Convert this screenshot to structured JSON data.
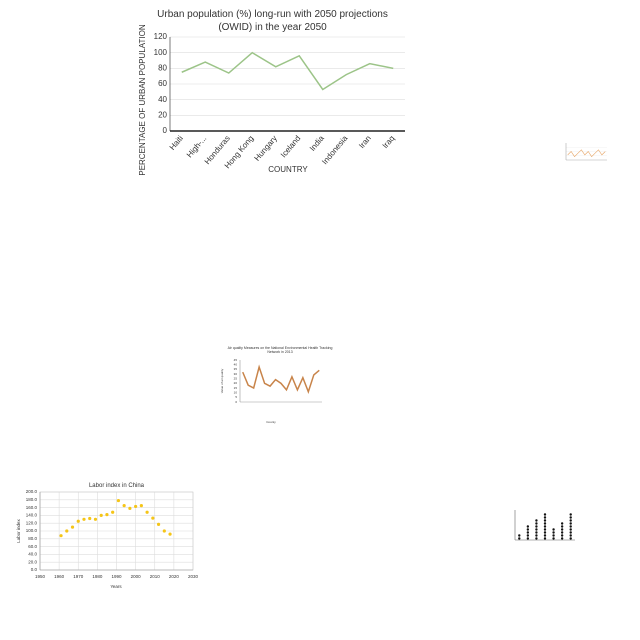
{
  "chart_data": [
    {
      "type": "line",
      "title": "Urban population (%) long-run with 2050 projections (OWID) in the year 2050",
      "x_label": "COUNTRY",
      "y_label": "PERCENTAGE OF URBAN POPULATION",
      "categories": [
        "Haiti",
        "High-...",
        "Honduras",
        "Hong Kong",
        "Hungary",
        "Iceland",
        "India",
        "Indonesia",
        "Iran",
        "Iraq"
      ],
      "values": [
        75,
        88,
        74,
        100,
        82,
        96,
        53,
        72,
        86,
        80
      ],
      "color": "#9cc488",
      "ylim": [
        0,
        120
      ],
      "yticks": [
        0,
        20,
        40,
        60,
        80,
        100,
        120
      ],
      "grid": true
    },
    {
      "type": "line",
      "values": [
        3,
        5,
        2,
        4,
        6,
        3,
        5,
        2,
        4,
        6,
        3,
        5
      ],
      "color": "#e8a86a",
      "ylim": [
        0,
        10
      ],
      "grid": true
    },
    {
      "type": "line",
      "title": "Air quality Measures on the National Environmental Health Tracking Network in 2013",
      "x_label": "County",
      "y_label": "Value of air quality",
      "values": [
        32,
        18,
        15,
        37.5,
        20,
        17,
        24,
        20,
        13,
        27,
        13,
        26,
        11,
        29,
        34
      ],
      "color": "#c8844a",
      "ylim": [
        0,
        45
      ],
      "yticks": [
        0,
        5,
        10,
        15,
        20,
        25,
        30,
        35,
        40,
        45
      ],
      "grid": false
    },
    {
      "type": "scatter",
      "title": "Labor index in China",
      "x_label": "Years",
      "y_label": "Labor index",
      "x": [
        1961,
        1964,
        1967,
        1970,
        1973,
        1976,
        1979,
        1982,
        1985,
        1988,
        1991,
        1994,
        1997,
        2000,
        2003,
        2006,
        2009,
        2012,
        2015,
        2018
      ],
      "values": [
        88,
        100,
        110,
        125,
        130,
        132,
        130,
        140,
        142,
        148,
        178,
        165,
        158,
        163,
        165,
        148,
        133,
        117,
        100,
        92
      ],
      "color": "#f5c518",
      "xlim": [
        1950,
        2030
      ],
      "xticks": [
        1950,
        1960,
        1970,
        1980,
        1990,
        2000,
        2010,
        2020,
        2030
      ],
      "ylim": [
        0,
        200
      ],
      "yticks": [
        {
          "value": 0,
          "label": "0.0"
        },
        {
          "value": 20,
          "label": "20.0"
        },
        {
          "value": 40,
          "label": "40.0"
        },
        {
          "value": 60,
          "label": "60.0"
        },
        {
          "value": 80,
          "label": "80.0"
        },
        {
          "value": 100,
          "label": "100.0"
        },
        {
          "value": 120,
          "label": "120.0"
        },
        {
          "value": 140,
          "label": "140.0"
        },
        {
          "value": 160,
          "label": "160.0"
        },
        {
          "value": 180,
          "label": "180.0"
        },
        {
          "value": 200,
          "label": "200.0"
        }
      ],
      "grid": true
    },
    {
      "type": "dots",
      "values": [
        2,
        5,
        7,
        9,
        4,
        6,
        9
      ],
      "color": "#111111",
      "ylim": [
        0,
        10
      ]
    }
  ]
}
